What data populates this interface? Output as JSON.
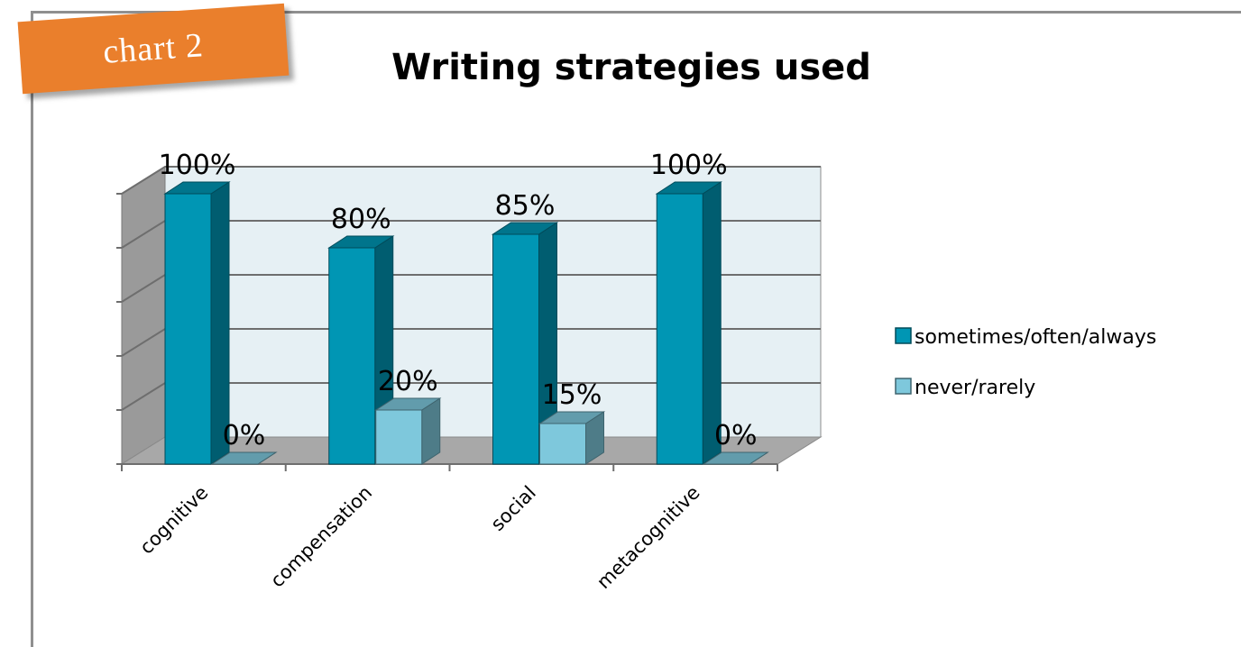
{
  "tag_label": "chart 2",
  "chart_data": {
    "type": "bar",
    "title": "Writing strategies used",
    "categories": [
      "cognitive",
      "compensation",
      "social",
      "metacognitive"
    ],
    "series": [
      {
        "name": "sometimes/often/always",
        "values": [
          100,
          80,
          85,
          100
        ],
        "labels": [
          "100%",
          "80%",
          "85%",
          "100%"
        ],
        "color": "#0096b4"
      },
      {
        "name": "never/rarely",
        "values": [
          0,
          20,
          15,
          0
        ],
        "labels": [
          "0%",
          "20%",
          "15%",
          "0%"
        ],
        "color": "#7ec8dc"
      }
    ],
    "ylim": [
      0,
      100
    ],
    "grid": true,
    "legend": "right",
    "three_d": true
  }
}
